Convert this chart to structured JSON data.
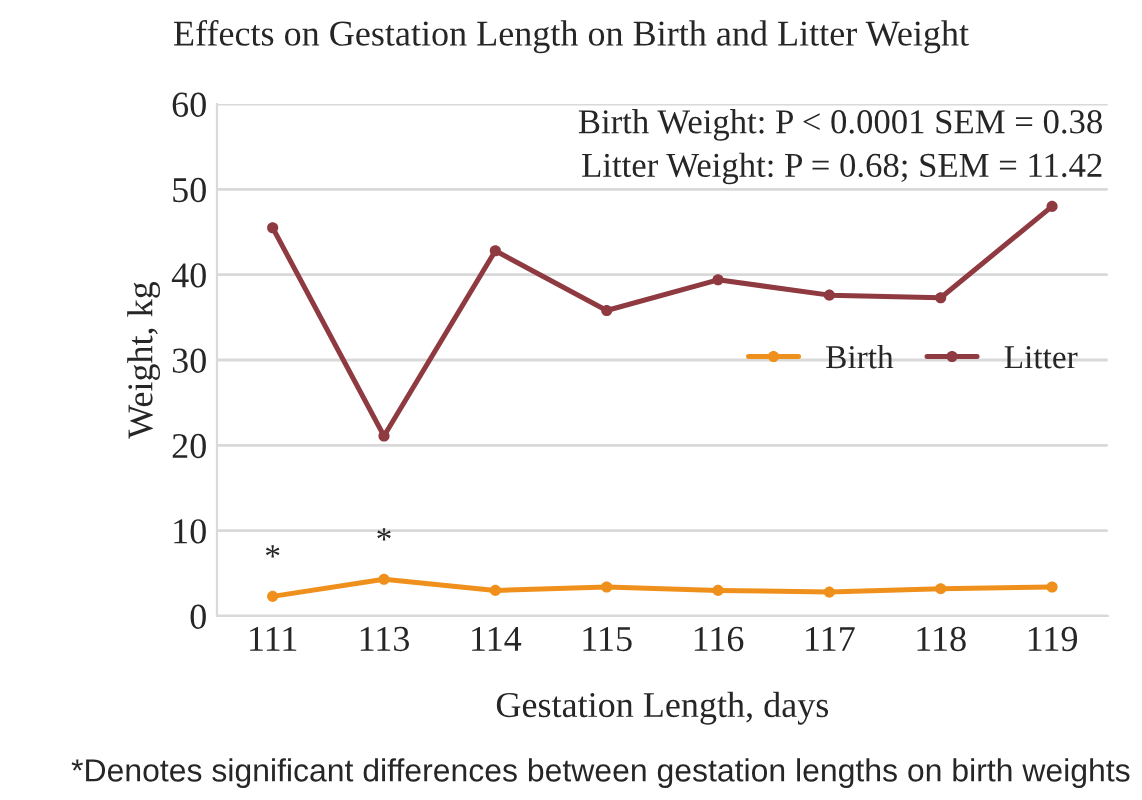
{
  "chart_data": {
    "type": "line",
    "title": "Effects on Gestation Length on Birth and Litter Weight",
    "xlabel": "Gestation Length, days",
    "ylabel": "Weight, kg",
    "categories": [
      "111",
      "113",
      "114",
      "115",
      "116",
      "117",
      "118",
      "119"
    ],
    "series": [
      {
        "name": "Birth",
        "color": "#f0901c",
        "values": [
          2.3,
          4.3,
          3.0,
          3.4,
          3.0,
          2.8,
          3.2,
          3.4
        ]
      },
      {
        "name": "Litter",
        "color": "#8e3a40",
        "values": [
          45.5,
          21.1,
          42.8,
          35.8,
          39.4,
          37.6,
          37.3,
          48.0
        ]
      }
    ],
    "ylim": [
      0,
      60
    ],
    "yticks": [
      0,
      10,
      20,
      30,
      40,
      50,
      60
    ],
    "grid": "y",
    "legend": "center right",
    "marker": "circle",
    "line_style": "solid",
    "annotations": [
      "Birth Weight: P < 0.0001 SEM = 0.38",
      "Litter Weight: P = 0.68; SEM = 11.42",
      "*Denotes significant differences between gestation lengths on birth weights",
      {
        "text": "*",
        "x": "111",
        "y": 2.3
      },
      {
        "text": "*",
        "x": "113",
        "y": 4.3
      }
    ]
  }
}
